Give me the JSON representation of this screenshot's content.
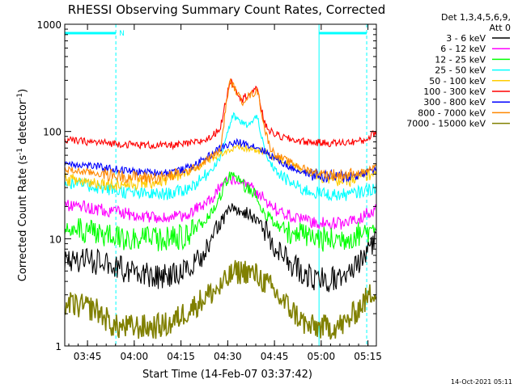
{
  "chart_data": {
    "type": "line",
    "title": "RHESSI Observing Summary Count Rates, Corrected",
    "xlabel": "Start Time (14-Feb-07 03:37:42)",
    "ylabel_main": "Corrected Count Rate (s",
    "ylabel_exp1": "-1",
    "ylabel_mid": " detector",
    "ylabel_exp2": "-1",
    "ylabel_tail": ")",
    "y_scale": "log",
    "ylim": [
      1,
      1000
    ],
    "xlim_minutes": [
      0,
      100
    ],
    "grid": false,
    "legend_position": "right",
    "legend_header": [
      "Det 1,3,4,5,6,9,",
      "Att 0"
    ],
    "footer_timestamp": "14-Oct-2021 05:11",
    "x_ticks": [
      {
        "minutes": 7.3,
        "label": "03:45"
      },
      {
        "minutes": 22.3,
        "label": "04:00"
      },
      {
        "minutes": 37.3,
        "label": "04:15"
      },
      {
        "minutes": 52.3,
        "label": "04:30"
      },
      {
        "minutes": 67.3,
        "label": "04:45"
      },
      {
        "minutes": 82.3,
        "label": "05:00"
      },
      {
        "minutes": 97.3,
        "label": "05:15"
      }
    ],
    "y_ticks": [
      {
        "value": 1,
        "label": "1"
      },
      {
        "value": 10,
        "label": "10"
      },
      {
        "value": 100,
        "label": "100"
      },
      {
        "value": 1000,
        "label": "1000"
      }
    ],
    "night_markers": {
      "night_label": "N",
      "solid_lines_minutes": [
        0,
        81.6
      ],
      "dashed_lines_minutes": [
        16.4,
        96.9
      ],
      "bars": [
        [
          0,
          16.4
        ],
        [
          81.6,
          96.9
        ]
      ],
      "color": "#00ffff"
    },
    "series": [
      {
        "name": "3 - 6 keV",
        "color": "#000000",
        "points": [
          [
            0,
            6.5
          ],
          [
            8,
            6.2
          ],
          [
            14,
            5.8
          ],
          [
            20,
            5.0
          ],
          [
            26,
            4.6
          ],
          [
            32,
            4.4
          ],
          [
            38,
            4.8
          ],
          [
            43,
            6.5
          ],
          [
            47,
            9.5
          ],
          [
            50,
            14
          ],
          [
            53,
            18.5
          ],
          [
            56,
            19
          ],
          [
            59,
            17
          ],
          [
            62,
            15
          ],
          [
            65,
            11
          ],
          [
            68,
            8
          ],
          [
            72,
            6
          ],
          [
            76,
            5
          ],
          [
            80,
            4.3
          ],
          [
            84,
            4.1
          ],
          [
            88,
            4.2
          ],
          [
            92,
            4.8
          ],
          [
            96,
            6.5
          ],
          [
            100,
            9.5
          ]
        ]
      },
      {
        "name": "6 - 12 keV",
        "color": "#ff00ff",
        "points": [
          [
            0,
            21
          ],
          [
            8,
            19.5
          ],
          [
            14,
            18.2
          ],
          [
            20,
            17
          ],
          [
            26,
            16
          ],
          [
            32,
            15.5
          ],
          [
            38,
            16.2
          ],
          [
            43,
            19.5
          ],
          [
            47,
            24
          ],
          [
            50,
            30
          ],
          [
            53,
            37
          ],
          [
            55,
            34
          ],
          [
            57,
            32
          ],
          [
            60,
            30
          ],
          [
            62,
            27
          ],
          [
            65,
            22
          ],
          [
            68,
            18.5
          ],
          [
            72,
            16.5
          ],
          [
            76,
            15
          ],
          [
            80,
            14.2
          ],
          [
            84,
            13.8
          ],
          [
            88,
            13.8
          ],
          [
            92,
            14.5
          ],
          [
            96,
            16.5
          ],
          [
            100,
            19
          ]
        ]
      },
      {
        "name": "12 - 25 keV",
        "color": "#00ff00",
        "points": [
          [
            0,
            12.5
          ],
          [
            8,
            11.5
          ],
          [
            14,
            10.8
          ],
          [
            20,
            10.2
          ],
          [
            26,
            9.8
          ],
          [
            32,
            9.8
          ],
          [
            38,
            10.5
          ],
          [
            43,
            13
          ],
          [
            47,
            18
          ],
          [
            50,
            26
          ],
          [
            53,
            40
          ],
          [
            55,
            36
          ],
          [
            57,
            33
          ],
          [
            59,
            29
          ],
          [
            61,
            27
          ],
          [
            63,
            20
          ],
          [
            65,
            16
          ],
          [
            68,
            13.5
          ],
          [
            72,
            11.8
          ],
          [
            76,
            10.8
          ],
          [
            80,
            10.2
          ],
          [
            84,
            9.8
          ],
          [
            88,
            9.8
          ],
          [
            92,
            10.5
          ],
          [
            96,
            11.5
          ],
          [
            100,
            13
          ]
        ]
      },
      {
        "name": "25 - 50 keV",
        "color": "#00ffff",
        "points": [
          [
            0,
            34
          ],
          [
            8,
            31
          ],
          [
            14,
            29
          ],
          [
            20,
            27
          ],
          [
            26,
            26
          ],
          [
            32,
            26
          ],
          [
            38,
            28
          ],
          [
            43,
            34
          ],
          [
            47,
            44
          ],
          [
            50,
            58
          ],
          [
            52,
            95
          ],
          [
            54,
            140
          ],
          [
            56,
            125
          ],
          [
            58,
            115
          ],
          [
            60,
            120
          ],
          [
            62,
            142
          ],
          [
            63,
            90
          ],
          [
            65,
            55
          ],
          [
            68,
            42
          ],
          [
            72,
            34
          ],
          [
            76,
            29
          ],
          [
            80,
            27
          ],
          [
            84,
            26
          ],
          [
            88,
            25.5
          ],
          [
            92,
            26
          ],
          [
            96,
            28
          ],
          [
            100,
            30
          ]
        ]
      },
      {
        "name": "50 - 100 keV",
        "color": "#ffcc00",
        "points": [
          [
            0,
            36
          ],
          [
            8,
            34
          ],
          [
            14,
            32.5
          ],
          [
            20,
            32
          ],
          [
            26,
            33
          ],
          [
            32,
            35
          ],
          [
            38,
            40
          ],
          [
            43,
            47
          ],
          [
            47,
            56
          ],
          [
            50,
            63
          ],
          [
            53,
            67
          ],
          [
            56,
            70
          ],
          [
            59,
            69
          ],
          [
            62,
            66
          ],
          [
            65,
            62
          ],
          [
            68,
            56
          ],
          [
            72,
            50
          ],
          [
            76,
            44
          ],
          [
            80,
            40
          ],
          [
            84,
            37
          ],
          [
            88,
            35
          ],
          [
            92,
            35
          ],
          [
            96,
            38
          ],
          [
            100,
            42
          ]
        ]
      },
      {
        "name": "100 - 300 keV",
        "color": "#ff0000",
        "points": [
          [
            0,
            83
          ],
          [
            8,
            80
          ],
          [
            14,
            78
          ],
          [
            20,
            76
          ],
          [
            26,
            74.5
          ],
          [
            32,
            74
          ],
          [
            38,
            75.5
          ],
          [
            43,
            80
          ],
          [
            47,
            88
          ],
          [
            50,
            110
          ],
          [
            52,
            210
          ],
          [
            53,
            300
          ],
          [
            54,
            280
          ],
          [
            56,
            220
          ],
          [
            57,
            195
          ],
          [
            58,
            215
          ],
          [
            60,
            235
          ],
          [
            61,
            240
          ],
          [
            62,
            250
          ],
          [
            63,
            170
          ],
          [
            64,
            120
          ],
          [
            66,
            100
          ],
          [
            69,
            90
          ],
          [
            72,
            85
          ],
          [
            76,
            81
          ],
          [
            80,
            79
          ],
          [
            84,
            78
          ],
          [
            88,
            78
          ],
          [
            92,
            80
          ],
          [
            96,
            82
          ],
          [
            99,
            95
          ],
          [
            100,
            100
          ]
        ]
      },
      {
        "name": "300 - 800 keV",
        "color": "#0000ff",
        "points": [
          [
            0,
            51
          ],
          [
            8,
            48
          ],
          [
            14,
            45.5
          ],
          [
            20,
            43
          ],
          [
            26,
            41.5
          ],
          [
            32,
            41.5
          ],
          [
            38,
            44
          ],
          [
            43,
            51
          ],
          [
            47,
            61
          ],
          [
            50,
            70
          ],
          [
            53,
            76
          ],
          [
            56,
            79
          ],
          [
            59,
            76
          ],
          [
            62,
            71
          ],
          [
            65,
            63
          ],
          [
            68,
            55
          ],
          [
            72,
            47
          ],
          [
            76,
            42
          ],
          [
            80,
            39.5
          ],
          [
            84,
            38
          ],
          [
            88,
            37.5
          ],
          [
            92,
            38.5
          ],
          [
            96,
            41
          ],
          [
            100,
            45
          ]
        ]
      },
      {
        "name": "800 - 7000 keV",
        "color": "#ff8800",
        "points": [
          [
            0,
            44
          ],
          [
            8,
            41.5
          ],
          [
            14,
            39.5
          ],
          [
            20,
            38
          ],
          [
            26,
            37
          ],
          [
            32,
            37.5
          ],
          [
            38,
            41
          ],
          [
            43,
            48
          ],
          [
            47,
            58
          ],
          [
            50,
            67
          ],
          [
            52,
            200
          ],
          [
            53,
            290
          ],
          [
            54,
            270
          ],
          [
            56,
            210
          ],
          [
            57,
            188
          ],
          [
            58,
            205
          ],
          [
            60,
            222
          ],
          [
            61,
            230
          ],
          [
            62,
            240
          ],
          [
            63,
            160
          ],
          [
            64,
            110
          ],
          [
            66,
            70
          ],
          [
            68,
            60
          ],
          [
            72,
            52
          ],
          [
            76,
            46
          ],
          [
            80,
            42
          ],
          [
            84,
            40
          ],
          [
            88,
            39
          ],
          [
            92,
            40
          ],
          [
            96,
            42
          ],
          [
            100,
            46
          ]
        ]
      },
      {
        "name": "7000 - 15000 keV",
        "color": "#808000",
        "points": [
          [
            0,
            2.5
          ],
          [
            10,
            2.2
          ],
          [
            16,
            1.5
          ],
          [
            22,
            1.5
          ],
          [
            28,
            1.5
          ],
          [
            34,
            1.6
          ],
          [
            38,
            2.0
          ],
          [
            42,
            2.4
          ],
          [
            46,
            3.0
          ],
          [
            50,
            3.5
          ],
          [
            54,
            4.8
          ],
          [
            58,
            5.0
          ],
          [
            62,
            4.5
          ],
          [
            66,
            3.5
          ],
          [
            70,
            2.6
          ],
          [
            74,
            2.0
          ],
          [
            78,
            1.5
          ],
          [
            82,
            1.5
          ],
          [
            86,
            1.5
          ],
          [
            90,
            1.6
          ],
          [
            94,
            2.2
          ],
          [
            98,
            3.0
          ],
          [
            100,
            3.5
          ]
        ]
      }
    ]
  }
}
